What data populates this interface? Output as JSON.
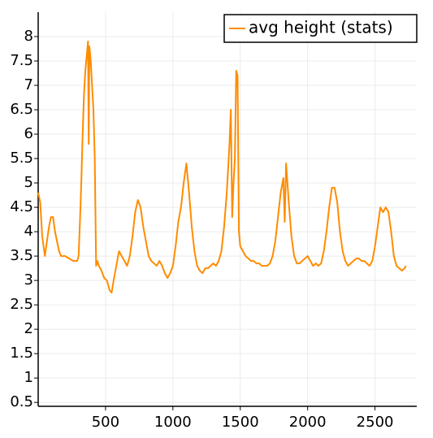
{
  "chart_data": {
    "type": "line",
    "x": [
      0,
      15,
      30,
      50,
      65,
      80,
      95,
      110,
      125,
      140,
      155,
      170,
      200,
      230,
      260,
      290,
      300,
      310,
      320,
      330,
      340,
      350,
      360,
      370,
      375,
      380,
      390,
      400,
      410,
      420,
      430,
      440,
      450,
      470,
      490,
      510,
      530,
      545,
      560,
      580,
      600,
      620,
      640,
      660,
      680,
      700,
      720,
      740,
      760,
      780,
      800,
      820,
      840,
      860,
      880,
      900,
      920,
      940,
      960,
      980,
      1000,
      1020,
      1040,
      1060,
      1080,
      1100,
      1120,
      1140,
      1160,
      1180,
      1200,
      1220,
      1240,
      1260,
      1280,
      1300,
      1320,
      1340,
      1360,
      1380,
      1400,
      1420,
      1430,
      1440,
      1450,
      1460,
      1470,
      1480,
      1490,
      1500,
      1520,
      1540,
      1560,
      1580,
      1600,
      1620,
      1640,
      1660,
      1680,
      1700,
      1720,
      1740,
      1760,
      1780,
      1800,
      1820,
      1830,
      1840,
      1860,
      1880,
      1900,
      1920,
      1940,
      1960,
      1980,
      2000,
      2020,
      2040,
      2060,
      2080,
      2100,
      2120,
      2140,
      2160,
      2180,
      2200,
      2220,
      2240,
      2260,
      2280,
      2300,
      2320,
      2340,
      2360,
      2380,
      2400,
      2420,
      2440,
      2460,
      2480,
      2500,
      2520,
      2540,
      2560,
      2580,
      2600,
      2620,
      2640,
      2660,
      2680,
      2700,
      2720,
      2730
    ],
    "series": [
      {
        "name": "avg height (stats)",
        "color": "#ff8c00",
        "values": [
          4.8,
          4.6,
          3.9,
          3.5,
          3.8,
          4.1,
          4.3,
          4.3,
          4.0,
          3.8,
          3.6,
          3.5,
          3.5,
          3.45,
          3.4,
          3.4,
          3.5,
          4.2,
          5.0,
          6.0,
          6.8,
          7.3,
          7.6,
          7.9,
          5.8,
          7.8,
          7.5,
          7.0,
          6.5,
          5.5,
          3.3,
          3.4,
          3.3,
          3.2,
          3.05,
          3.0,
          2.8,
          2.75,
          3.0,
          3.3,
          3.6,
          3.5,
          3.4,
          3.3,
          3.5,
          3.9,
          4.4,
          4.65,
          4.5,
          4.1,
          3.8,
          3.5,
          3.4,
          3.35,
          3.3,
          3.4,
          3.3,
          3.15,
          3.05,
          3.15,
          3.3,
          3.7,
          4.2,
          4.5,
          5.0,
          5.4,
          4.8,
          4.1,
          3.6,
          3.3,
          3.2,
          3.15,
          3.25,
          3.25,
          3.3,
          3.35,
          3.3,
          3.4,
          3.6,
          4.1,
          4.8,
          5.8,
          6.5,
          4.3,
          5.0,
          5.5,
          7.3,
          7.2,
          4.0,
          3.7,
          3.6,
          3.5,
          3.45,
          3.4,
          3.4,
          3.35,
          3.35,
          3.3,
          3.3,
          3.3,
          3.35,
          3.5,
          3.8,
          4.3,
          4.8,
          5.1,
          4.2,
          5.4,
          4.6,
          3.9,
          3.5,
          3.35,
          3.35,
          3.4,
          3.45,
          3.5,
          3.4,
          3.3,
          3.35,
          3.3,
          3.35,
          3.6,
          4.0,
          4.5,
          4.9,
          4.9,
          4.6,
          4.0,
          3.6,
          3.4,
          3.3,
          3.35,
          3.4,
          3.45,
          3.45,
          3.4,
          3.4,
          3.35,
          3.3,
          3.4,
          3.7,
          4.1,
          4.5,
          4.4,
          4.5,
          4.4,
          4.0,
          3.5,
          3.3,
          3.25,
          3.2,
          3.25,
          3.3
        ]
      }
    ],
    "xlim": [
      0,
      2810
    ],
    "xticks": [
      500,
      1000,
      1500,
      2000,
      2500
    ],
    "ylim": [
      0.42,
      8.5
    ],
    "yticks": [
      0.5,
      1,
      1.5,
      2,
      2.5,
      3,
      3.5,
      4,
      4.5,
      5,
      5.5,
      6,
      6.5,
      7,
      7.5,
      8
    ],
    "grid": true,
    "legend": "upper right"
  }
}
